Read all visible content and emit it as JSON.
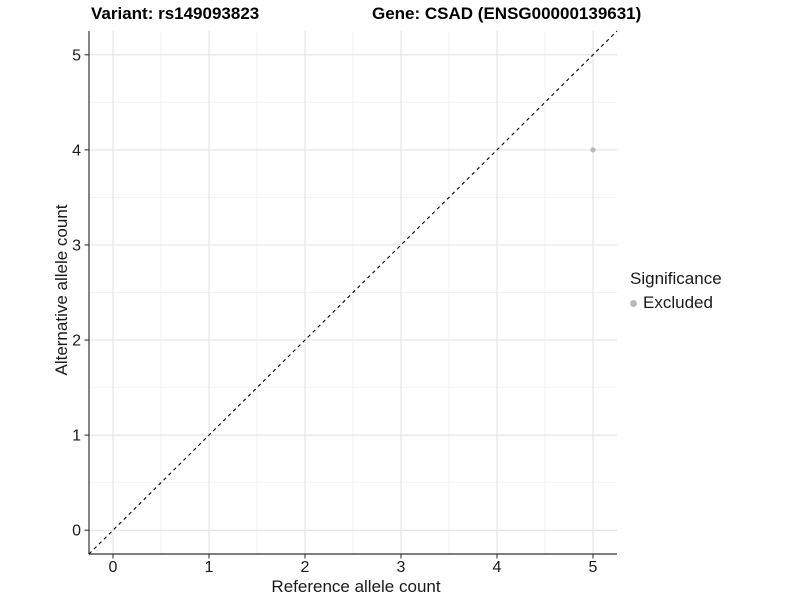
{
  "figure": {
    "background": "#ffffff"
  },
  "chart_data": {
    "type": "scatter",
    "titles": [
      "Variant: rs149093823",
      "Gene: CSAD (ENSG00000139631)"
    ],
    "xlabel": "Reference allele count",
    "ylabel": "Alternative allele count",
    "xlim": [
      -0.25,
      5.25
    ],
    "ylim": [
      -0.25,
      5.25
    ],
    "xticks": [
      0,
      1,
      2,
      3,
      4,
      5
    ],
    "yticks": [
      0,
      1,
      2,
      3,
      4,
      5
    ],
    "xticks_minor": [
      0.5,
      1.5,
      2.5,
      3.5,
      4.5
    ],
    "yticks_minor": [
      0.5,
      1.5,
      2.5,
      3.5,
      4.5
    ],
    "grid": true,
    "identity_line": {
      "style": "dashed",
      "color": "#000000",
      "from": -0.25,
      "to": 5.25
    },
    "series": [
      {
        "name": "Excluded",
        "color": "#b9b9b9",
        "points": [
          {
            "x": 5,
            "y": 4
          }
        ]
      }
    ],
    "legend": {
      "title": "Significance",
      "position": "right",
      "items": [
        {
          "label": "Excluded",
          "color": "#b9b9b9",
          "marker": "dot-icon"
        }
      ]
    },
    "colors": {
      "grid_major": "#e6e6e6",
      "grid_minor": "#f2f2f2",
      "axis": "#333333",
      "tick_text": "#1a1a1a",
      "point": "#b9b9b9"
    }
  }
}
